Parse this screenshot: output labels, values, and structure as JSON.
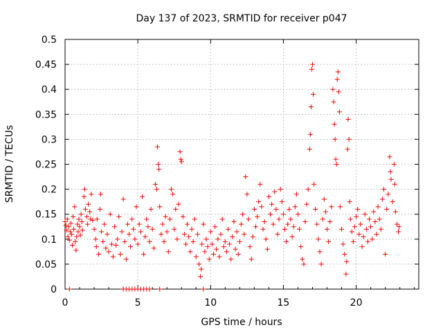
{
  "chart_data": {
    "type": "scatter",
    "title": "Day 137 of 2023, SRMTID for receiver p047",
    "xlabel": "GPS time / hours",
    "ylabel": "SRMTID / TECUs",
    "xlim": [
      0,
      24.3
    ],
    "ylim": [
      0,
      0.5
    ],
    "x_ticks": [
      0,
      5,
      10,
      15,
      20
    ],
    "y_ticks": [
      0,
      0.05,
      0.1,
      0.15,
      0.2,
      0.25,
      0.3,
      0.35,
      0.4,
      0.45,
      0.5
    ],
    "x_tick_labels": [
      "0",
      "5",
      "10",
      "15",
      "20"
    ],
    "y_tick_labels": [
      "0",
      "0.05",
      "0.1",
      "0.15",
      "0.2",
      "0.25",
      "0.3",
      "0.35",
      "0.4",
      "0.45",
      "0.5"
    ],
    "grid": true,
    "marker": "+",
    "marker_color": "#ff0000",
    "series": [
      {
        "name": "SRMTID",
        "points": [
          [
            0.0,
            0.135
          ],
          [
            0.05,
            0.128
          ],
          [
            0.1,
            0.118
          ],
          [
            0.15,
            0.14
          ],
          [
            0.2,
            0.105
          ],
          [
            0.25,
            0.125
          ],
          [
            0.3,
            0.098
          ],
          [
            0.35,
            0.115
          ],
          [
            0.4,
            0.132
          ],
          [
            0.45,
            0.11
          ],
          [
            0.5,
            0.088
          ],
          [
            0.55,
            0.145
          ],
          [
            0.6,
            0.12
          ],
          [
            0.65,
            0.165
          ],
          [
            0.7,
            0.095
          ],
          [
            0.75,
            0.078
          ],
          [
            0.8,
            0.105
          ],
          [
            0.85,
            0.13
          ],
          [
            0.9,
            0.115
          ],
          [
            0.95,
            0.14
          ],
          [
            1.0,
            0.125
          ],
          [
            1.05,
            0.108
          ],
          [
            1.1,
            0.15
          ],
          [
            1.15,
            0.135
          ],
          [
            1.2,
            0.118
          ],
          [
            1.3,
            0.185
          ],
          [
            1.35,
            0.2
          ],
          [
            1.4,
            0.16
          ],
          [
            1.5,
            0.145
          ],
          [
            1.55,
            0.13
          ],
          [
            1.6,
            0.17
          ],
          [
            1.7,
            0.155
          ],
          [
            1.75,
            0.14
          ],
          [
            1.8,
            0.19
          ],
          [
            1.9,
            0.138
          ],
          [
            2.0,
            0.12
          ],
          [
            2.1,
            0.1
          ],
          [
            2.15,
            0.085
          ],
          [
            2.2,
            0.14
          ],
          [
            2.3,
            0.07
          ],
          [
            2.4,
            0.16
          ],
          [
            2.45,
            0.19
          ],
          [
            2.5,
            0.115
          ],
          [
            2.6,
            0.095
          ],
          [
            2.7,
            0.13
          ],
          [
            2.8,
            0.082
          ],
          [
            2.9,
            0.11
          ],
          [
            3.0,
            0.075
          ],
          [
            3.1,
            0.15
          ],
          [
            3.2,
            0.09
          ],
          [
            3.3,
            0.065
          ],
          [
            3.4,
            0.125
          ],
          [
            3.5,
            0.088
          ],
          [
            3.6,
            0.1
          ],
          [
            3.7,
            0.145
          ],
          [
            3.8,
            0.07
          ],
          [
            3.9,
            0.115
          ],
          [
            4.0,
            0.18
          ],
          [
            4.1,
            0.095
          ],
          [
            4.2,
            0.06
          ],
          [
            4.3,
            0.13
          ],
          [
            4.4,
            0.11
          ],
          [
            4.5,
            0.085
          ],
          [
            4.6,
            0.14
          ],
          [
            4.7,
            0.12
          ],
          [
            4.8,
            0.1
          ],
          [
            4.9,
            0.165
          ],
          [
            5.0,
            0.09
          ],
          [
            5.1,
            0.13
          ],
          [
            5.2,
            0.115
          ],
          [
            5.3,
            0.185
          ],
          [
            5.4,
            0.07
          ],
          [
            5.5,
            0.105
          ],
          [
            5.6,
            0.14
          ],
          [
            5.7,
            0.125
          ],
          [
            5.8,
            0.095
          ],
          [
            5.9,
            0.16
          ],
          [
            6.0,
            0.12
          ],
          [
            6.1,
            0.082
          ],
          [
            6.2,
            0.21
          ],
          [
            6.3,
            0.2
          ],
          [
            6.35,
            0.285
          ],
          [
            6.4,
            0.25
          ],
          [
            6.45,
            0.24
          ],
          [
            6.5,
            0.165
          ],
          [
            6.6,
            0.11
          ],
          [
            6.7,
            0.13
          ],
          [
            6.8,
            0.095
          ],
          [
            6.9,
            0.145
          ],
          [
            7.0,
            0.115
          ],
          [
            7.1,
            0.075
          ],
          [
            7.2,
            0.14
          ],
          [
            7.3,
            0.2
          ],
          [
            7.4,
            0.19
          ],
          [
            7.5,
            0.12
          ],
          [
            7.6,
            0.16
          ],
          [
            7.7,
            0.1
          ],
          [
            7.8,
            0.17
          ],
          [
            7.9,
            0.275
          ],
          [
            7.95,
            0.26
          ],
          [
            8.0,
            0.255
          ],
          [
            8.1,
            0.145
          ],
          [
            8.2,
            0.11
          ],
          [
            8.3,
            0.09
          ],
          [
            8.4,
            0.13
          ],
          [
            8.5,
            0.105
          ],
          [
            8.6,
            0.075
          ],
          [
            8.7,
            0.12
          ],
          [
            8.8,
            0.095
          ],
          [
            8.9,
            0.14
          ],
          [
            9.0,
            0.065
          ],
          [
            9.1,
            0.11
          ],
          [
            9.2,
            0.05
          ],
          [
            9.3,
            0.025
          ],
          [
            9.35,
            0.04
          ],
          [
            9.4,
            0.09
          ],
          [
            9.5,
            0.13
          ],
          [
            9.6,
            0.075
          ],
          [
            9.7,
            0.1
          ],
          [
            9.8,
            0.085
          ],
          [
            9.9,
            0.06
          ],
          [
            10.0,
            0.115
          ],
          [
            10.1,
            0.09
          ],
          [
            10.2,
            0.07
          ],
          [
            10.3,
            0.125
          ],
          [
            10.4,
            0.08
          ],
          [
            10.5,
            0.1
          ],
          [
            10.6,
            0.065
          ],
          [
            10.7,
            0.11
          ],
          [
            10.8,
            0.14
          ],
          [
            10.9,
            0.085
          ],
          [
            11.0,
            0.095
          ],
          [
            11.1,
            0.075
          ],
          [
            11.2,
            0.12
          ],
          [
            11.3,
            0.09
          ],
          [
            11.4,
            0.06
          ],
          [
            11.5,
            0.105
          ],
          [
            11.6,
            0.135
          ],
          [
            11.7,
            0.08
          ],
          [
            11.8,
            0.115
          ],
          [
            11.9,
            0.07
          ],
          [
            12.0,
            0.095
          ],
          [
            12.1,
            0.13
          ],
          [
            12.2,
            0.15
          ],
          [
            12.3,
            0.11
          ],
          [
            12.4,
            0.225
          ],
          [
            12.5,
            0.19
          ],
          [
            12.6,
            0.14
          ],
          [
            12.7,
            0.085
          ],
          [
            12.8,
            0.06
          ],
          [
            12.9,
            0.105
          ],
          [
            13.0,
            0.16
          ],
          [
            13.1,
            0.125
          ],
          [
            13.2,
            0.145
          ],
          [
            13.3,
            0.175
          ],
          [
            13.4,
            0.21
          ],
          [
            13.5,
            0.165
          ],
          [
            13.6,
            0.12
          ],
          [
            13.7,
            0.135
          ],
          [
            13.8,
            0.1
          ],
          [
            13.9,
            0.08
          ],
          [
            14.0,
            0.185
          ],
          [
            14.1,
            0.15
          ],
          [
            14.2,
            0.17
          ],
          [
            14.3,
            0.13
          ],
          [
            14.4,
            0.195
          ],
          [
            14.5,
            0.16
          ],
          [
            14.6,
            0.11
          ],
          [
            14.7,
            0.14
          ],
          [
            14.8,
            0.2
          ],
          [
            14.9,
            0.175
          ],
          [
            15.0,
            0.15
          ],
          [
            15.1,
            0.12
          ],
          [
            15.2,
            0.095
          ],
          [
            15.3,
            0.13
          ],
          [
            15.4,
            0.16
          ],
          [
            15.5,
            0.14
          ],
          [
            15.6,
            0.105
          ],
          [
            15.7,
            0.125
          ],
          [
            15.8,
            0.165
          ],
          [
            15.9,
            0.19
          ],
          [
            16.0,
            0.15
          ],
          [
            16.1,
            0.12
          ],
          [
            16.2,
            0.085
          ],
          [
            16.3,
            0.06
          ],
          [
            16.4,
            0.05
          ],
          [
            16.5,
            0.135
          ],
          [
            16.6,
            0.17
          ],
          [
            16.7,
            0.2
          ],
          [
            16.8,
            0.28
          ],
          [
            16.85,
            0.31
          ],
          [
            16.9,
            0.365
          ],
          [
            16.95,
            0.44
          ],
          [
            17.0,
            0.45
          ],
          [
            17.05,
            0.39
          ],
          [
            17.1,
            0.21
          ],
          [
            17.2,
            0.16
          ],
          [
            17.3,
            0.13
          ],
          [
            17.4,
            0.1
          ],
          [
            17.5,
            0.075
          ],
          [
            17.6,
            0.05
          ],
          [
            17.7,
            0.14
          ],
          [
            17.8,
            0.18
          ],
          [
            17.9,
            0.155
          ],
          [
            18.0,
            0.12
          ],
          [
            18.1,
            0.095
          ],
          [
            18.2,
            0.135
          ],
          [
            18.3,
            0.165
          ],
          [
            18.4,
            0.4
          ],
          [
            18.45,
            0.375
          ],
          [
            18.5,
            0.33
          ],
          [
            18.55,
            0.3
          ],
          [
            18.6,
            0.26
          ],
          [
            18.65,
            0.25
          ],
          [
            18.7,
            0.42
          ],
          [
            18.75,
            0.435
          ],
          [
            18.8,
            0.395
          ],
          [
            18.85,
            0.355
          ],
          [
            18.9,
            0.165
          ],
          [
            19.0,
            0.12
          ],
          [
            19.1,
            0.09
          ],
          [
            19.2,
            0.07
          ],
          [
            19.3,
            0.03
          ],
          [
            19.35,
            0.055
          ],
          [
            19.4,
            0.28
          ],
          [
            19.45,
            0.34
          ],
          [
            19.5,
            0.3
          ],
          [
            19.55,
            0.175
          ],
          [
            19.6,
            0.14
          ],
          [
            19.7,
            0.115
          ],
          [
            19.8,
            0.095
          ],
          [
            19.9,
            0.125
          ],
          [
            20.0,
            0.145
          ],
          [
            20.1,
            0.16
          ],
          [
            20.2,
            0.11
          ],
          [
            20.3,
            0.13
          ],
          [
            20.4,
            0.085
          ],
          [
            20.5,
            0.105
          ],
          [
            20.6,
            0.15
          ],
          [
            20.7,
            0.12
          ],
          [
            20.8,
            0.095
          ],
          [
            20.9,
            0.14
          ],
          [
            21.0,
            0.125
          ],
          [
            21.1,
            0.1
          ],
          [
            21.2,
            0.155
          ],
          [
            21.3,
            0.135
          ],
          [
            21.4,
            0.11
          ],
          [
            21.5,
            0.165
          ],
          [
            21.6,
            0.14
          ],
          [
            21.7,
            0.12
          ],
          [
            21.8,
            0.18
          ],
          [
            21.9,
            0.2
          ],
          [
            22.0,
            0.07
          ],
          [
            22.1,
            0.16
          ],
          [
            22.2,
            0.19
          ],
          [
            22.3,
            0.265
          ],
          [
            22.35,
            0.235
          ],
          [
            22.4,
            0.22
          ],
          [
            22.5,
            0.175
          ],
          [
            22.6,
            0.25
          ],
          [
            22.65,
            0.21
          ],
          [
            22.7,
            0.155
          ],
          [
            22.8,
            0.13
          ],
          [
            22.9,
            0.115
          ],
          [
            22.95,
            0.125
          ],
          [
            0.3,
            0.0
          ],
          [
            4.0,
            0.0
          ],
          [
            4.2,
            0.0
          ],
          [
            4.4,
            0.0
          ],
          [
            4.6,
            0.0
          ],
          [
            4.8,
            0.0
          ],
          [
            5.0,
            0.0
          ],
          [
            5.2,
            0.0
          ],
          [
            5.4,
            0.0
          ],
          [
            5.6,
            0.0
          ],
          [
            5.8,
            0.0
          ],
          [
            6.5,
            0.0
          ],
          [
            9.5,
            0.0
          ]
        ]
      }
    ]
  }
}
